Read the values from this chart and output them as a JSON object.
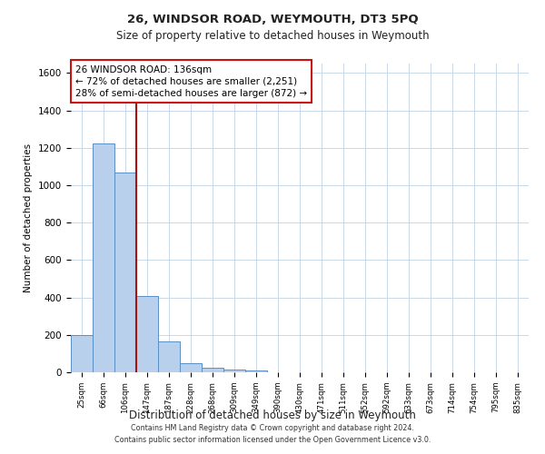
{
  "title1": "26, WINDSOR ROAD, WEYMOUTH, DT3 5PQ",
  "title2": "Size of property relative to detached houses in Weymouth",
  "xlabel": "Distribution of detached houses by size in Weymouth",
  "ylabel": "Number of detached properties",
  "bin_labels": [
    "25sqm",
    "66sqm",
    "106sqm",
    "147sqm",
    "187sqm",
    "228sqm",
    "268sqm",
    "309sqm",
    "349sqm",
    "390sqm",
    "430sqm",
    "471sqm",
    "511sqm",
    "552sqm",
    "592sqm",
    "633sqm",
    "673sqm",
    "714sqm",
    "754sqm",
    "795sqm",
    "835sqm"
  ],
  "bar_heights": [
    200,
    1225,
    1070,
    410,
    165,
    50,
    25,
    15,
    10,
    0,
    0,
    0,
    0,
    0,
    0,
    0,
    0,
    0,
    0,
    0,
    0
  ],
  "bar_color": "#b8d0eb",
  "bar_edge_color": "#5a8fc4",
  "vline_x": 2.5,
  "vline_color": "#aa1111",
  "ylim": [
    0,
    1650
  ],
  "yticks": [
    0,
    200,
    400,
    600,
    800,
    1000,
    1200,
    1400,
    1600
  ],
  "annotation_title": "26 WINDSOR ROAD: 136sqm",
  "annotation_line1": "← 72% of detached houses are smaller (2,251)",
  "annotation_line2": "28% of semi-detached houses are larger (872) →",
  "annotation_box_color": "#cc1111",
  "footer1": "Contains HM Land Registry data © Crown copyright and database right 2024.",
  "footer2": "Contains public sector information licensed under the Open Government Licence v3.0.",
  "bg_color": "#ffffff",
  "grid_color": "#c8d8ea"
}
